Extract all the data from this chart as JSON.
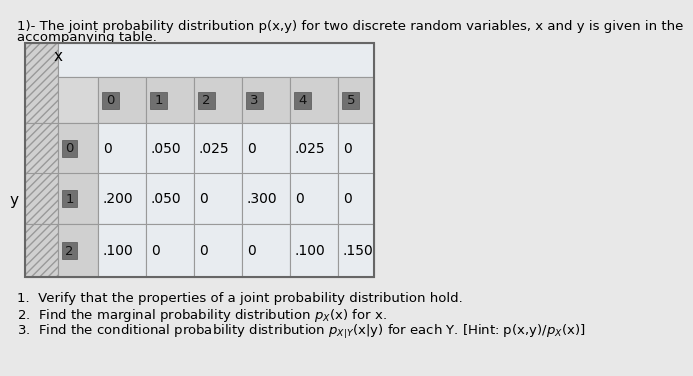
{
  "title_line1": "1)- The joint probability distribution p(x,y) for two discrete random variables, x and y is given in the",
  "title_line2": "accompanying table.",
  "x_values": [
    "0",
    "1",
    "2",
    "3",
    "4",
    "5"
  ],
  "y_values": [
    "0",
    "1",
    "2"
  ],
  "table_data": [
    [
      "0",
      ".050",
      ".025",
      "0",
      ".025",
      "0"
    ],
    [
      ".200",
      ".050",
      "0",
      ".300",
      "0",
      "0"
    ],
    [
      ".100",
      "0",
      "0",
      "0",
      ".100",
      ".150"
    ]
  ],
  "bg_color": "#e8e8e8",
  "table_bg": "#f0f0f0",
  "header_bg": "#c8c8c8",
  "data_bg": "#e4e8ec",
  "cell_border": "#999999",
  "text_color": "#000000",
  "header_num_bg": "#808080",
  "font_size_title": 9.5,
  "font_size_table": 10,
  "font_size_footer": 9.5
}
